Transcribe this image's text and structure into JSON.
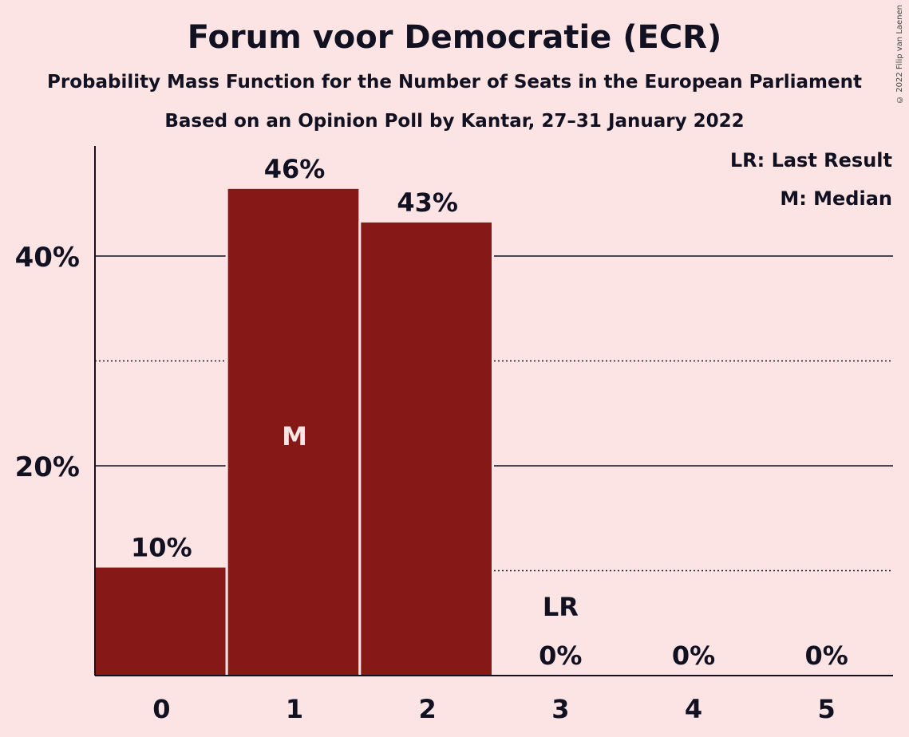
{
  "title": "Forum voor Democratie (ECR)",
  "subtitle": "Probability Mass Function for the Number of Seats in the European Parliament",
  "subtitle2": "Based on an Opinion Poll by Kantar, 27–31 January 2022",
  "copyright": "© 2022 Filip van Laenen",
  "colors": {
    "background": "#FCE4E4",
    "bar": "#871818",
    "text": "#111122"
  },
  "chart_data": {
    "type": "bar",
    "categories": [
      "0",
      "1",
      "2",
      "3",
      "4",
      "5"
    ],
    "values": [
      10.3,
      46.4,
      43.2,
      0,
      0,
      0
    ],
    "data_labels": [
      "10%",
      "46%",
      "43%",
      "0%",
      "0%",
      "0%"
    ],
    "ylim": [
      0,
      50
    ],
    "y_ticks": [
      {
        "value": 20,
        "label": "20%",
        "style": "solid"
      },
      {
        "value": 40,
        "label": "40%",
        "style": "solid"
      }
    ],
    "y_minor_ticks": [
      10,
      30
    ],
    "median": {
      "category": "1",
      "label": "M"
    },
    "last_result": {
      "category": "3",
      "label": "LR"
    },
    "legend": {
      "position": "top-right",
      "items": [
        "LR: Last Result",
        "M: Median"
      ]
    }
  }
}
